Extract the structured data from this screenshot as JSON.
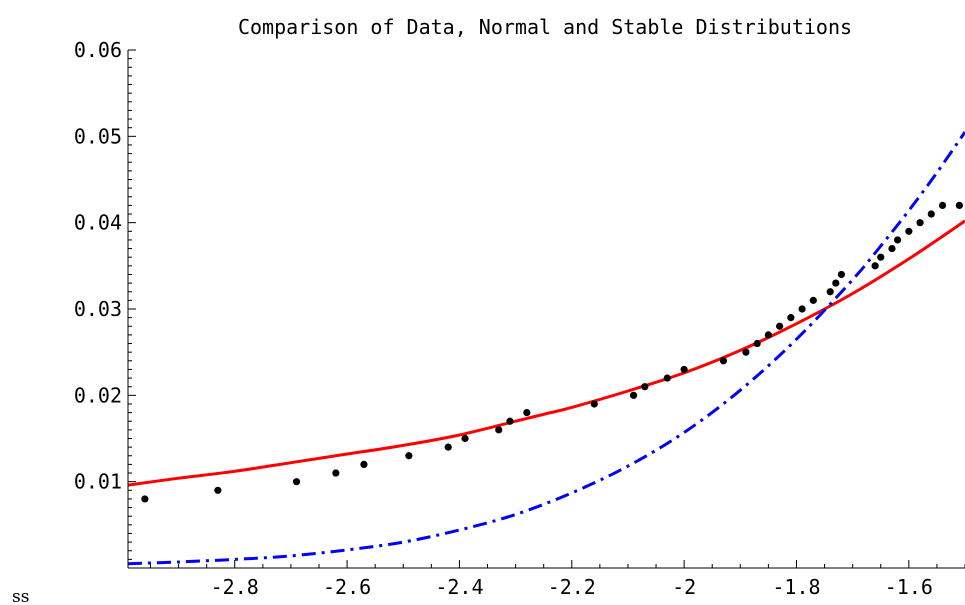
{
  "chart_data": {
    "type": "line",
    "title": "Comparison of Data, Normal and Stable Distributions",
    "xlabel": "",
    "ylabel": "",
    "xlim": [
      -2.99,
      -1.5
    ],
    "ylim": [
      0,
      0.06
    ],
    "x_ticks": [
      -2.8,
      -2.6,
      -2.4,
      -2.2,
      -2.0,
      -1.8,
      -1.6
    ],
    "x_tick_labels": [
      "-2.8",
      "-2.6",
      "-2.4",
      "-2.2",
      "-2",
      "-1.8",
      "-1.6"
    ],
    "y_ticks": [
      0.01,
      0.02,
      0.03,
      0.04,
      0.05,
      0.06
    ],
    "y_tick_labels": [
      "0.01",
      "0.02",
      "0.03",
      "0.04",
      "0.05",
      "0.06"
    ],
    "grid": false,
    "legend": "none",
    "corner_text": "ss",
    "series": [
      {
        "style": "points",
        "color": "#000000",
        "x": [
          -2.96,
          -2.83,
          -2.69,
          -2.62,
          -2.57,
          -2.49,
          -2.42,
          -2.39,
          -2.33,
          -2.31,
          -2.28,
          -2.16,
          -2.09,
          -2.07,
          -2.03,
          -2.0,
          -1.93,
          -1.89,
          -1.87,
          -1.85,
          -1.83,
          -1.81,
          -1.79,
          -1.77,
          -1.74,
          -1.73,
          -1.72,
          -1.66,
          -1.65,
          -1.63,
          -1.62,
          -1.6,
          -1.58,
          -1.56,
          -1.54,
          -1.51
        ],
        "y": [
          0.008,
          0.009,
          0.01,
          0.011,
          0.012,
          0.013,
          0.014,
          0.015,
          0.016,
          0.017,
          0.018,
          0.019,
          0.02,
          0.021,
          0.022,
          0.023,
          0.024,
          0.025,
          0.026,
          0.027,
          0.028,
          0.029,
          0.03,
          0.031,
          0.032,
          0.033,
          0.034,
          0.035,
          0.036,
          0.037,
          0.038,
          0.039,
          0.04,
          0.041,
          0.042,
          0.042
        ]
      },
      {
        "style": "solid",
        "color": "#ff0000",
        "x": [
          -2.99,
          -2.9,
          -2.8,
          -2.7,
          -2.6,
          -2.5,
          -2.4,
          -2.3,
          -2.25,
          -2.2,
          -2.1,
          -2.0,
          -1.9,
          -1.8,
          -1.7,
          -1.6,
          -1.5
        ],
        "y": [
          0.0096,
          0.0104,
          0.0112,
          0.0122,
          0.0132,
          0.0142,
          0.0154,
          0.017,
          0.0178,
          0.0186,
          0.0205,
          0.0226,
          0.0252,
          0.0283,
          0.0318,
          0.0358,
          0.0402
        ]
      },
      {
        "style": "dashdot",
        "color": "#0000ff",
        "x": [
          -2.99,
          -2.9,
          -2.8,
          -2.7,
          -2.6,
          -2.5,
          -2.4,
          -2.3,
          -2.2,
          -2.1,
          -2.0,
          -1.9,
          -1.8,
          -1.7,
          -1.65,
          -1.6,
          -1.55,
          -1.5
        ],
        "y": [
          0.0005,
          0.0007,
          0.001,
          0.0014,
          0.0021,
          0.003,
          0.0044,
          0.0062,
          0.0087,
          0.0118,
          0.0157,
          0.0206,
          0.0265,
          0.0334,
          0.0373,
          0.0414,
          0.0458,
          0.0505
        ]
      }
    ]
  }
}
